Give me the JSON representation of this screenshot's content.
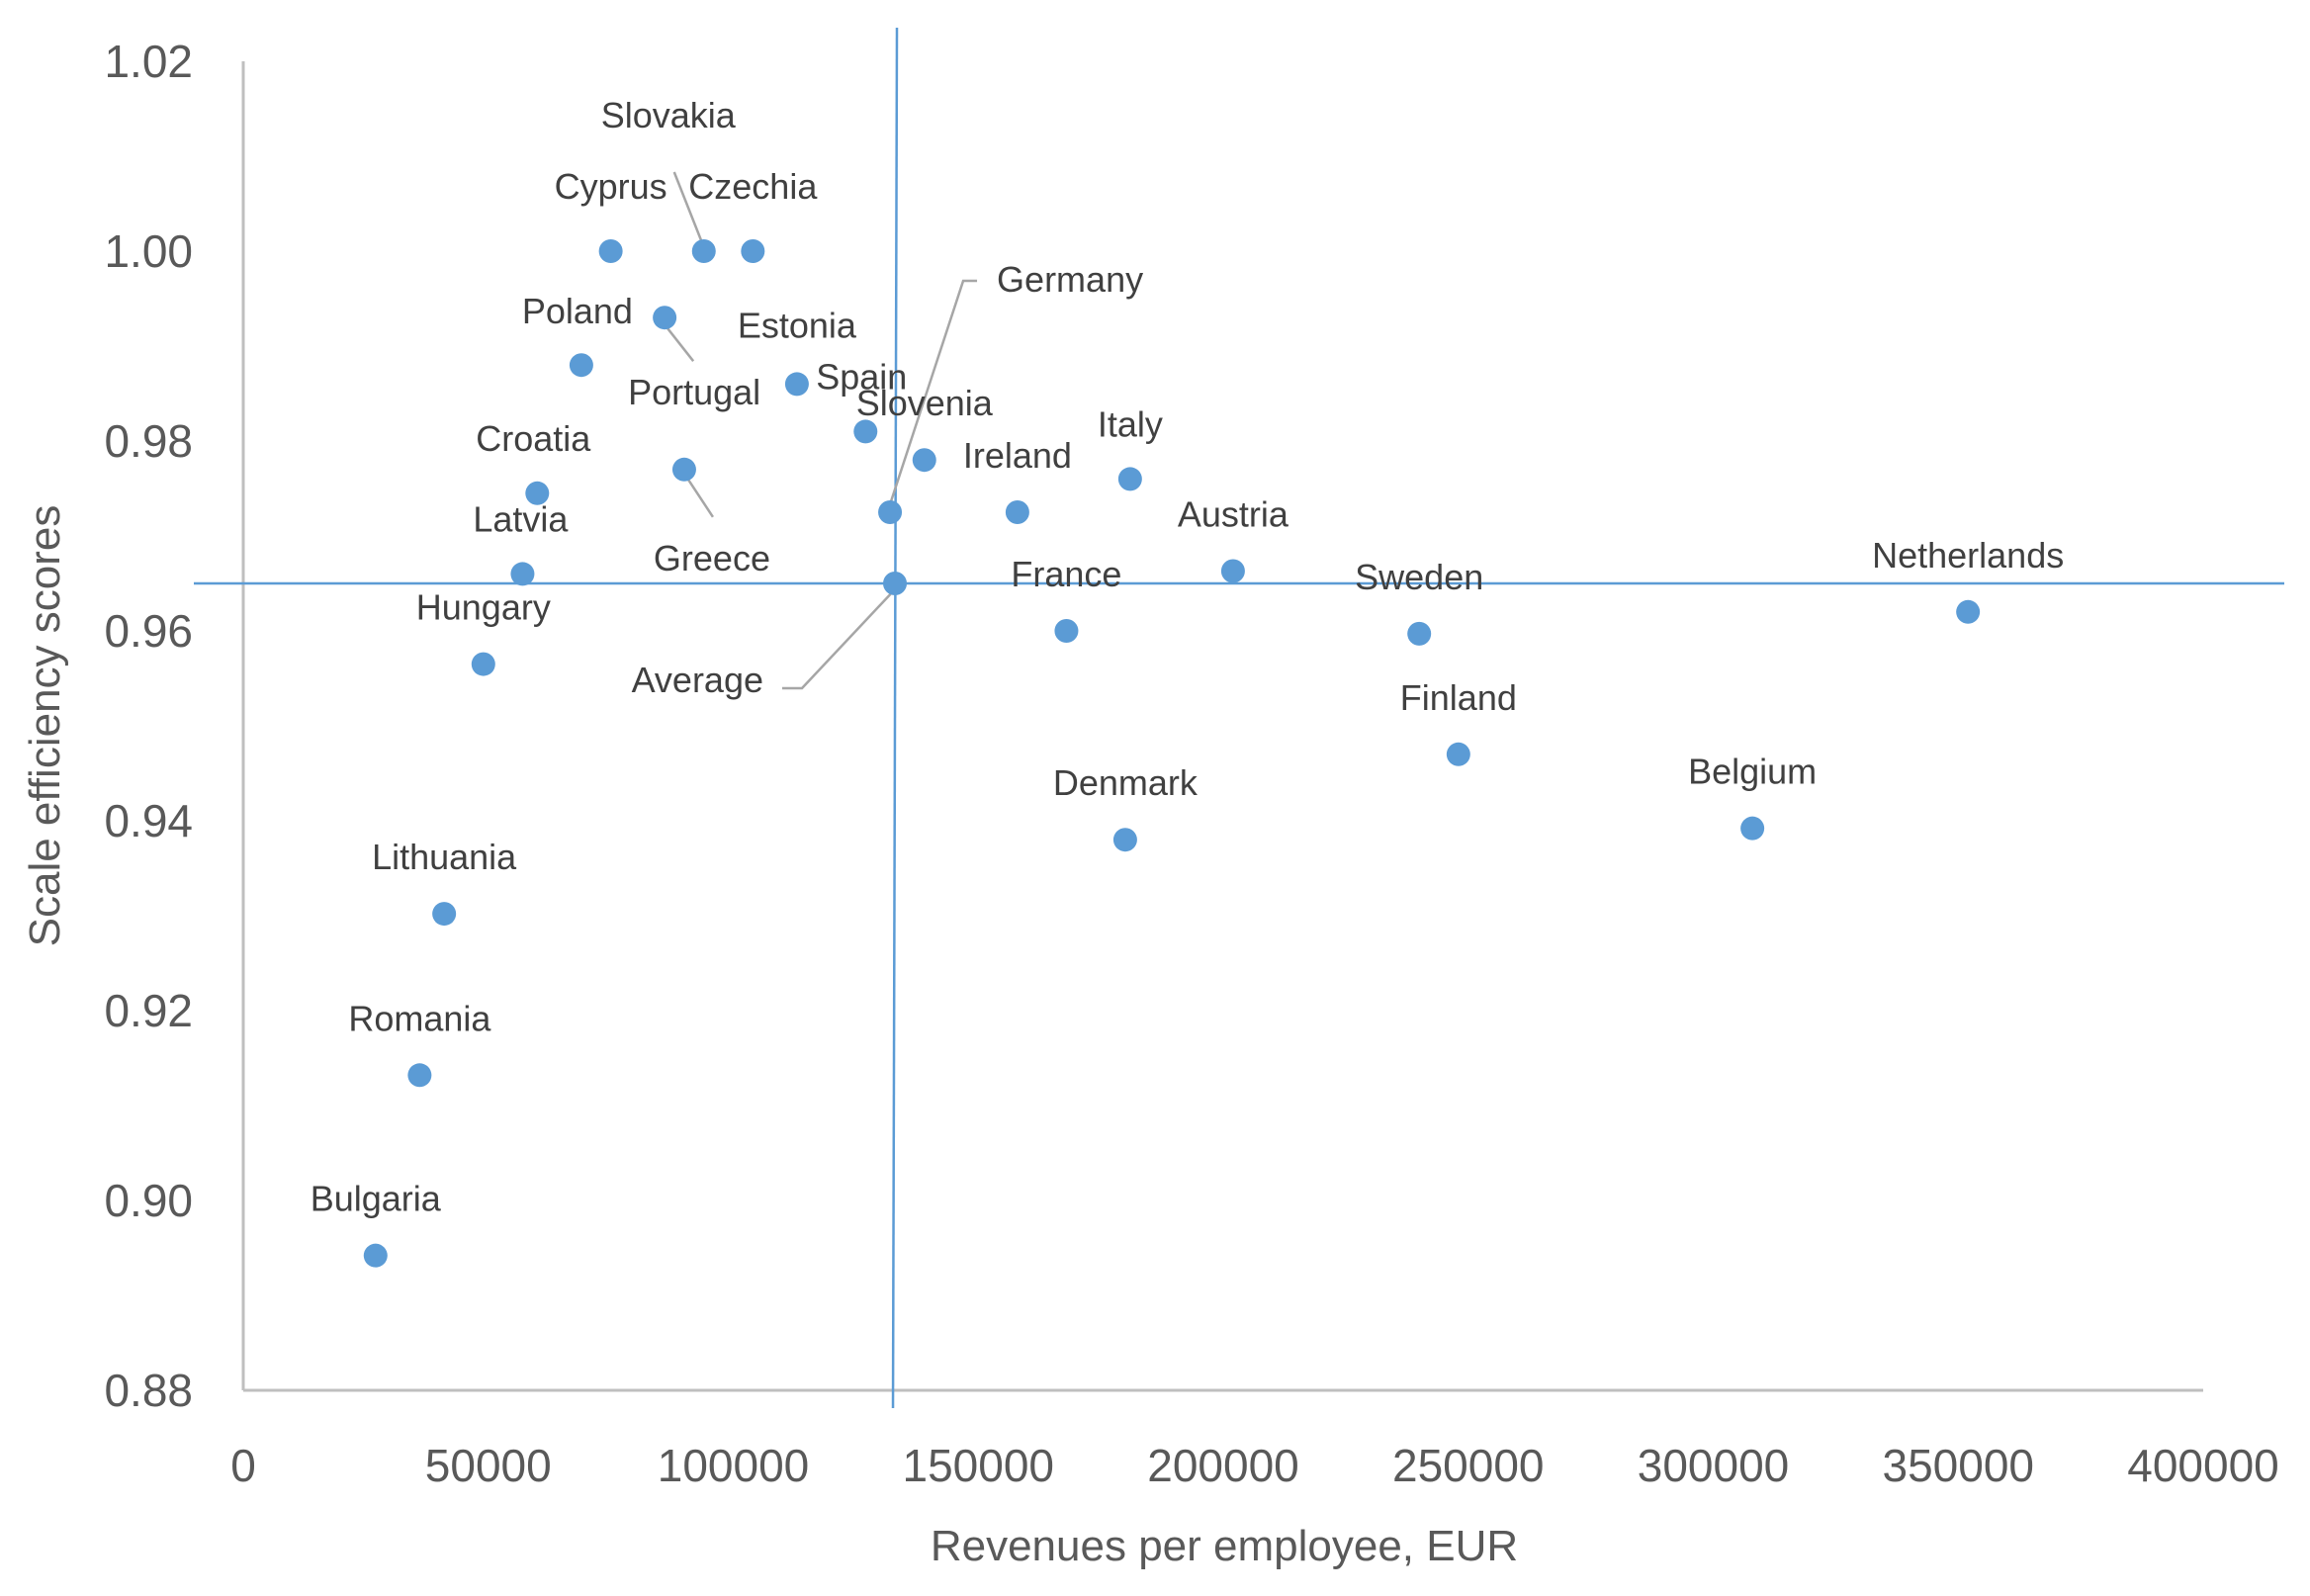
{
  "chart_data": {
    "type": "scatter",
    "title": "",
    "xlabel": "Revenues per employee, EUR",
    "ylabel": "Scale efficiency scores",
    "xlim": [
      0,
      400000
    ],
    "ylim": [
      0.88,
      1.02
    ],
    "xticks": [
      "0",
      "50000",
      "100000",
      "150000",
      "200000",
      "250000",
      "300000",
      "350000",
      "400000"
    ],
    "yticks": [
      "0.88",
      "0.90",
      "0.92",
      "0.94",
      "0.96",
      "0.98",
      "1.00",
      "1.02"
    ],
    "grid": false,
    "legend": "none",
    "point_color": "#5B9BD5",
    "average": {
      "label": "Average",
      "x": 133000,
      "y": 0.965
    },
    "points": [
      {
        "label": "Slovakia",
        "x": 94000,
        "y": 1.0
      },
      {
        "label": "Cyprus",
        "x": 75000,
        "y": 1.0
      },
      {
        "label": "Czechia",
        "x": 104000,
        "y": 1.0
      },
      {
        "label": "Poland",
        "x": 69000,
        "y": 0.988
      },
      {
        "label": "Portugal",
        "x": 86000,
        "y": 0.993
      },
      {
        "label": "Estonia",
        "x": 113000,
        "y": 0.986
      },
      {
        "label": "Spain",
        "x": 127000,
        "y": 0.981
      },
      {
        "label": "Slovenia",
        "x": 139000,
        "y": 0.978
      },
      {
        "label": "Germany",
        "x": 132000,
        "y": 0.9725
      },
      {
        "label": "Croatia",
        "x": 60000,
        "y": 0.9745
      },
      {
        "label": "Greece",
        "x": 90000,
        "y": 0.977
      },
      {
        "label": "Ireland",
        "x": 158000,
        "y": 0.9725
      },
      {
        "label": "Italy",
        "x": 181000,
        "y": 0.976
      },
      {
        "label": "Latvia",
        "x": 57000,
        "y": 0.966
      },
      {
        "label": "Austria",
        "x": 202000,
        "y": 0.9663
      },
      {
        "label": "France",
        "x": 168000,
        "y": 0.96
      },
      {
        "label": "Sweden",
        "x": 240000,
        "y": 0.9597
      },
      {
        "label": "Netherlands",
        "x": 352000,
        "y": 0.962
      },
      {
        "label": "Hungary",
        "x": 49000,
        "y": 0.9565
      },
      {
        "label": "Finland",
        "x": 248000,
        "y": 0.947
      },
      {
        "label": "Denmark",
        "x": 180000,
        "y": 0.938
      },
      {
        "label": "Belgium",
        "x": 308000,
        "y": 0.9392
      },
      {
        "label": "Lithuania",
        "x": 41000,
        "y": 0.9302
      },
      {
        "label": "Romania",
        "x": 36000,
        "y": 0.9132
      },
      {
        "label": "Bulgaria",
        "x": 27000,
        "y": 0.8942
      }
    ]
  }
}
